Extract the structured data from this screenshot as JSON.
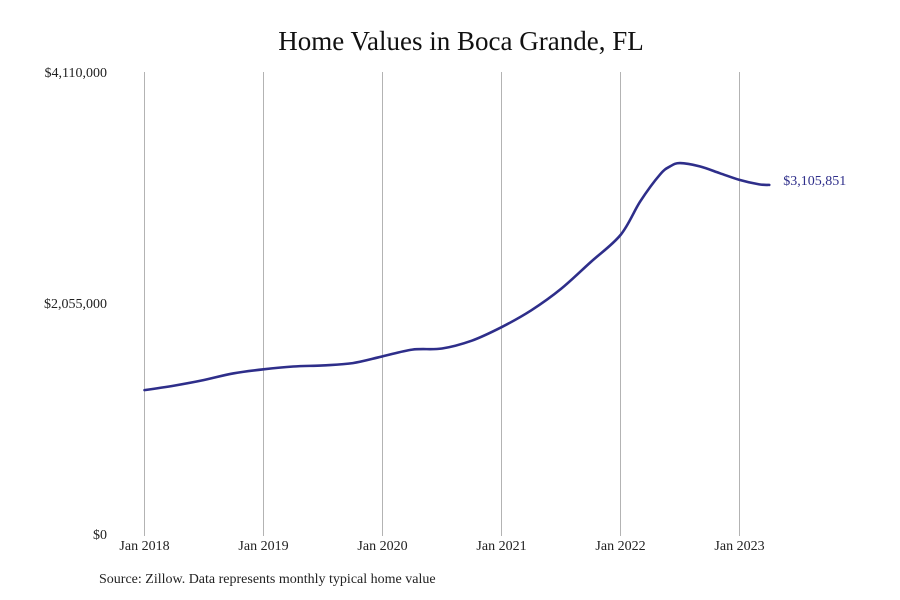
{
  "chart_data": {
    "type": "line",
    "title": "Home Values in Boca Grande, FL",
    "xlabel": "",
    "ylabel": "",
    "y_ticks": [
      {
        "value": 0,
        "label": "$0"
      },
      {
        "value": 2055000,
        "label": "$2,055,000"
      },
      {
        "value": 4110000,
        "label": "$4,110,000"
      }
    ],
    "ylim": [
      0,
      4110000
    ],
    "x_ticks": [
      {
        "value": "2018-01",
        "label": "Jan 2018"
      },
      {
        "value": "2019-01",
        "label": "Jan 2019"
      },
      {
        "value": "2020-01",
        "label": "Jan 2020"
      },
      {
        "value": "2021-01",
        "label": "Jan 2021"
      },
      {
        "value": "2022-01",
        "label": "Jan 2022"
      },
      {
        "value": "2023-01",
        "label": "Jan 2023"
      }
    ],
    "xlim": [
      "2018-01",
      "2024-01"
    ],
    "grid": {
      "vertical": true,
      "horizontal": false
    },
    "series": [
      {
        "color": "#2e2e8a",
        "end_label": "$3,105,851",
        "points": [
          {
            "x": "2018-01",
            "y": 1280000
          },
          {
            "x": "2018-04",
            "y": 1320000
          },
          {
            "x": "2018-07",
            "y": 1370000
          },
          {
            "x": "2018-10",
            "y": 1430000
          },
          {
            "x": "2019-01",
            "y": 1465000
          },
          {
            "x": "2019-04",
            "y": 1490000
          },
          {
            "x": "2019-07",
            "y": 1500000
          },
          {
            "x": "2019-10",
            "y": 1520000
          },
          {
            "x": "2020-01",
            "y": 1580000
          },
          {
            "x": "2020-04",
            "y": 1640000
          },
          {
            "x": "2020-07",
            "y": 1650000
          },
          {
            "x": "2020-10",
            "y": 1720000
          },
          {
            "x": "2021-01",
            "y": 1840000
          },
          {
            "x": "2021-04",
            "y": 1990000
          },
          {
            "x": "2021-07",
            "y": 2180000
          },
          {
            "x": "2021-10",
            "y": 2420000
          },
          {
            "x": "2022-01",
            "y": 2660000
          },
          {
            "x": "2022-03",
            "y": 2960000
          },
          {
            "x": "2022-05",
            "y": 3200000
          },
          {
            "x": "2022-06",
            "y": 3270000
          },
          {
            "x": "2022-07",
            "y": 3300000
          },
          {
            "x": "2022-09",
            "y": 3270000
          },
          {
            "x": "2022-11",
            "y": 3210000
          },
          {
            "x": "2023-01",
            "y": 3150000
          },
          {
            "x": "2023-03",
            "y": 3110000
          },
          {
            "x": "2023-04",
            "y": 3105851
          }
        ]
      }
    ]
  },
  "source_note": "Source: Zillow. Data represents monthly typical home value"
}
